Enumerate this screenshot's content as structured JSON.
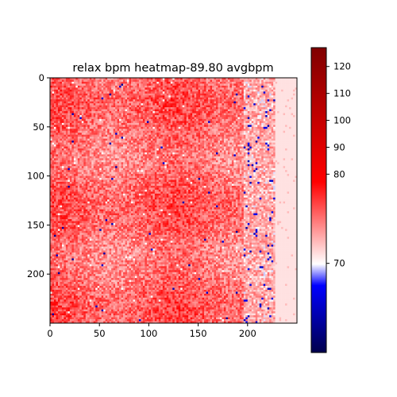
{
  "chart_data": {
    "type": "heatmap",
    "title": "relax bpm heatmap-89.80 avgbpm",
    "xlabel": "",
    "ylabel": "",
    "grid_size": [
      250,
      250
    ],
    "xlim": [
      0,
      250
    ],
    "ylim": [
      250,
      0
    ],
    "x_ticks": [
      "0",
      "50",
      "100",
      "150",
      "200"
    ],
    "y_ticks": [
      "0",
      "50",
      "100",
      "150",
      "200"
    ],
    "colorbar": {
      "range": [
        60,
        127
      ],
      "ticks": [
        "70",
        "80",
        "90",
        "100",
        "110",
        "120"
      ],
      "colormap": [
        "#00004c",
        "#0000ff",
        "#ffffff",
        "#ff0000",
        "#800000"
      ],
      "center_value": 80
    },
    "mean_value": 89.8,
    "grid": false,
    "region_notes": [
      {
        "region": "main body (x 0-195)",
        "typical_value": 95,
        "pattern": "noisy mottled reds"
      },
      {
        "region": "transition band (x 195-225)",
        "typical_value": 85,
        "pattern": "mixed light reds, a few white/blue cells"
      },
      {
        "region": "right edge (x 225-250)",
        "typical_value": 83,
        "pattern": "uniform light pink"
      }
    ]
  }
}
